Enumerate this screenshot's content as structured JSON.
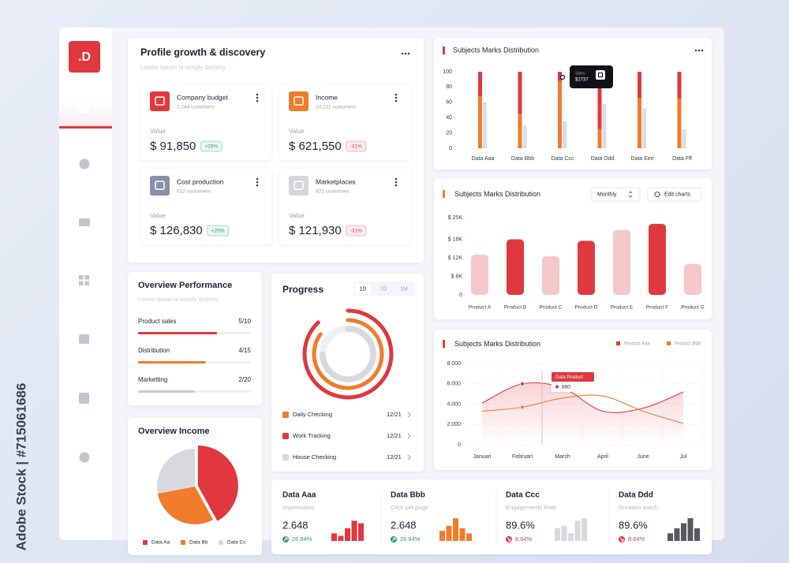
{
  "watermark": "Adobe Stock | #715061686",
  "sidebar": {
    "logo": ".D"
  },
  "profile": {
    "title": "Profile growth & discovery",
    "subtitle": "Lorem Ipsum is simply dummy",
    "cards": [
      {
        "name": "Company budget",
        "customers": "2,244 customers",
        "value_title": "Value",
        "amount": "$ 91,850",
        "change": "+25%",
        "trend": "up",
        "color": "#e0383e"
      },
      {
        "name": "Income",
        "customers": "24,211 customers",
        "value_title": "Value",
        "amount": "$ 621,550",
        "change": "-31%",
        "trend": "down",
        "color": "#f07c2c"
      },
      {
        "name": "Cost production",
        "customers": "512 customers",
        "value_title": "Value",
        "amount": "$ 126,830",
        "change": "+25%",
        "trend": "up",
        "color": "#8a90a8"
      },
      {
        "name": "Marketplaces",
        "customers": "422 customers",
        "value_title": "Value",
        "amount": "$ 121,930",
        "change": "-31%",
        "trend": "down",
        "color": "#d4d6dc"
      }
    ]
  },
  "performance": {
    "title": "Overview Performance",
    "subtitle": "Lorem Ipsum is simply dummy",
    "xlim": [
      0,
      100
    ],
    "items": [
      {
        "name": "Product sales",
        "label": "5/10",
        "value": 70,
        "color": "#e0383e"
      },
      {
        "name": "Distribution",
        "label": "4/15",
        "value": 60,
        "color": "#f07c2c"
      },
      {
        "name": "Marketting",
        "label": "2/20",
        "value": 50,
        "color": "#c9cbd3"
      }
    ]
  },
  "progress": {
    "title": "Progress",
    "tabs": [
      "1D",
      "7D",
      "1M"
    ],
    "max": 100,
    "items": [
      {
        "name": "Daily Checking",
        "label": "12/21",
        "value": 85,
        "color": "#f07c2c"
      },
      {
        "name": "Work Tracking",
        "label": "12/21",
        "value": 88,
        "color": "#e0383e"
      },
      {
        "name": "House Checking",
        "label": "12/21",
        "value": 75,
        "color": "#d8d9de"
      }
    ]
  },
  "income": {
    "title": "Overview Income",
    "chart": {
      "type": "pie",
      "categories": [
        "Data Aa",
        "Data Bb",
        "Data Cc"
      ],
      "values": [
        42,
        30,
        28
      ],
      "colors": [
        "#e0383e",
        "#f07c2c",
        "#d8d9de"
      ]
    }
  },
  "chart1": {
    "type": "bar",
    "title": "Subjects Marks Distribution",
    "categories": [
      "Data Aaa",
      "Data Bbb",
      "Data Ccc",
      "Data Ddd",
      "Data Eee",
      "Data Fff"
    ],
    "series": [
      {
        "color": "#f07c2c",
        "values": [
          68,
          45,
          88,
          25,
          66,
          65
        ]
      },
      {
        "color": "#e0383e",
        "values": [
          32,
          55,
          12,
          75,
          34,
          35
        ]
      },
      {
        "color": "#dcdde2",
        "values": [
          60,
          30,
          35,
          58,
          52,
          25
        ]
      }
    ],
    "ylim": [
      0,
      100
    ],
    "yticks": [
      0,
      20,
      40,
      60,
      80,
      100
    ],
    "tooltip": {
      "title": "Sales",
      "value": "$2737"
    }
  },
  "chart2": {
    "type": "bar",
    "title": "Subjects Marks Distribution",
    "dropdown": "Monthly",
    "button": "Edit charts",
    "categories": [
      "Product A",
      "Product B",
      "Product C",
      "Product D",
      "Product E",
      "Product F",
      "Product G"
    ],
    "values": [
      13000,
      18000,
      12500,
      17500,
      21000,
      23000,
      10000
    ],
    "colors": [
      "#f4c7c8",
      "#e0383e",
      "#f4c7c8",
      "#e0383e",
      "#f4c7c8",
      "#e0383e",
      "#f4c7c8"
    ],
    "ylim": [
      0,
      27000
    ],
    "yticks": [
      0,
      {
        "value": 6000,
        "label": "$ 6K"
      },
      {
        "value": 12000,
        "label": "$ 12K"
      },
      {
        "value": 18000,
        "label": "$ 18K"
      },
      {
        "value": 25000,
        "label": "$ 25K"
      }
    ]
  },
  "chart3": {
    "type": "line",
    "title": "Subjects Marks Distribution",
    "categories": [
      "Januari",
      "Februari",
      "March",
      "April",
      "June",
      "Jul"
    ],
    "series": [
      {
        "name": "Product Aaa",
        "color": "#e0383e",
        "values": [
          4100,
          6000,
          5600,
          3300,
          3600,
          5200
        ]
      },
      {
        "name": "Product Bbb",
        "color": "#f07c2c",
        "values": [
          3300,
          3700,
          4600,
          4800,
          3300,
          2100
        ]
      }
    ],
    "ylim": [
      0,
      8000
    ],
    "yticks": [
      0,
      {
        "value": 2000,
        "label": "2.000"
      },
      {
        "value": 4000,
        "label": "4.000"
      },
      {
        "value": 6000,
        "label": "6.000"
      },
      {
        "value": 8000,
        "label": "8.000"
      }
    ],
    "grid": true,
    "tooltip": {
      "title": "Data Product",
      "value": "880"
    }
  },
  "stats": [
    {
      "title": "Data Aaa",
      "subtitle": "Impressions",
      "value": "2.648",
      "change": "26.84%",
      "trend": "up",
      "color": "#e0383e",
      "bars": [
        3,
        2,
        5,
        8,
        7
      ]
    },
    {
      "title": "Data Bbb",
      "subtitle": "Click per page",
      "value": "2.648",
      "change": "26.84%",
      "trend": "up",
      "color": "#f07c2c",
      "bars": [
        4,
        6,
        9,
        5,
        3
      ]
    },
    {
      "title": "Data Ccc",
      "subtitle": "Engagements Rate",
      "value": "89.6%",
      "change": "8.64%",
      "trend": "down",
      "color": "#d8d9de",
      "bars": [
        5,
        6,
        3,
        8,
        9
      ]
    },
    {
      "title": "Data Ddd",
      "subtitle": "Duration watch",
      "value": "89.6%",
      "change": "8.64%",
      "trend": "down",
      "color": "#55585f",
      "bars": [
        3,
        5,
        7,
        9,
        5
      ]
    }
  ]
}
